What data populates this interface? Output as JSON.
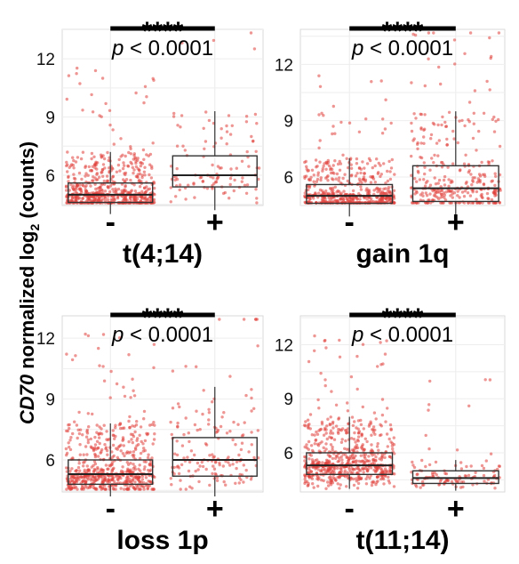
{
  "y_axis_label_italic": "CD70",
  "y_axis_label_rest": " normalized log",
  "y_axis_label_sub": "2",
  "y_axis_label_tail": " (counts)",
  "point_color": "#e0403a",
  "chart_data": [
    {
      "type": "box",
      "title": "t(4;14)",
      "categories": [
        "-",
        "+"
      ],
      "yticks": [
        6,
        9,
        12
      ],
      "ylim": [
        3.8,
        14
      ],
      "significance": "****",
      "pvalue_prefix": "p",
      "pvalue_suffix": " < 0.0001",
      "boxes": [
        {
          "category": "-",
          "whisker_low": 4.0,
          "q1": 4.6,
          "median": 5.0,
          "q3": 5.6,
          "whisker_high": 7.2,
          "n_points": 620
        },
        {
          "category": "+",
          "whisker_low": 4.2,
          "q1": 5.4,
          "median": 6.0,
          "q3": 7.0,
          "whisker_high": 9.3,
          "n_points": 110
        }
      ]
    },
    {
      "type": "box",
      "title": "gain 1q",
      "categories": [
        "-",
        "+"
      ],
      "yticks": [
        6,
        9,
        12
      ],
      "ylim": [
        3.8,
        14
      ],
      "significance": "****",
      "pvalue_prefix": "p",
      "pvalue_suffix": " < 0.0001",
      "boxes": [
        {
          "category": "-",
          "whisker_low": 3.9,
          "q1": 4.6,
          "median": 5.0,
          "q3": 5.6,
          "whisker_high": 7.0,
          "n_points": 520
        },
        {
          "category": "+",
          "whisker_low": 3.9,
          "q1": 4.7,
          "median": 5.4,
          "q3": 6.6,
          "whisker_high": 9.5,
          "n_points": 320
        }
      ]
    },
    {
      "type": "box",
      "title": "loss 1p",
      "categories": [
        "-",
        "+"
      ],
      "yticks": [
        6,
        9,
        12
      ],
      "ylim": [
        3.8,
        14
      ],
      "significance": "****",
      "pvalue_prefix": "p",
      "pvalue_suffix": " < 0.0001",
      "boxes": [
        {
          "category": "-",
          "whisker_low": 4.2,
          "q1": 4.8,
          "median": 5.3,
          "q3": 6.0,
          "whisker_high": 7.8,
          "n_points": 600
        },
        {
          "category": "+",
          "whisker_low": 4.2,
          "q1": 5.2,
          "median": 6.0,
          "q3": 7.1,
          "whisker_high": 9.6,
          "n_points": 160
        }
      ]
    },
    {
      "type": "box",
      "title": "t(11;14)",
      "categories": [
        "-",
        "+"
      ],
      "yticks": [
        6,
        9,
        12
      ],
      "ylim": [
        3.8,
        14
      ],
      "significance": "****",
      "pvalue_prefix": "p",
      "pvalue_suffix": " < 0.0001",
      "boxes": [
        {
          "category": "-",
          "whisker_low": 4.0,
          "q1": 4.8,
          "median": 5.3,
          "q3": 6.0,
          "whisker_high": 8.0,
          "n_points": 640
        },
        {
          "category": "+",
          "whisker_low": 3.9,
          "q1": 4.3,
          "median": 4.6,
          "q3": 5.0,
          "whisker_high": 5.6,
          "n_points": 110
        }
      ]
    }
  ]
}
